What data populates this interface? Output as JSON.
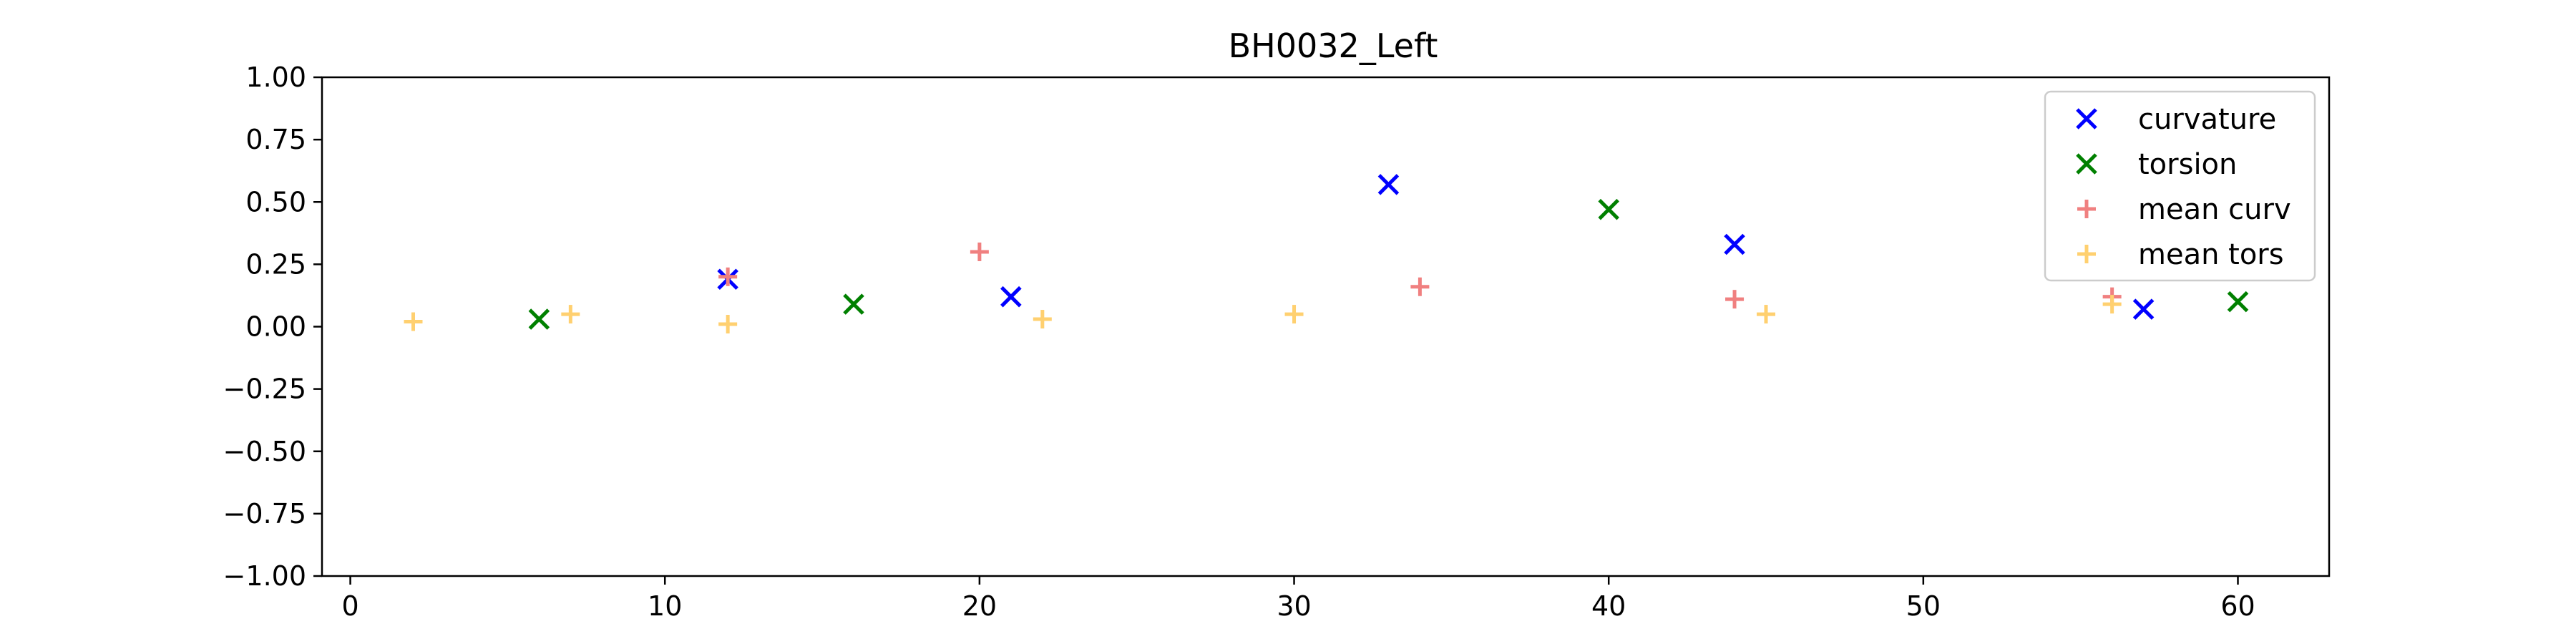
{
  "chart_data": {
    "type": "scatter",
    "title": "BH0032_Left",
    "xlabel": "",
    "ylabel": "",
    "xlim": [
      -0.9,
      62.9
    ],
    "ylim": [
      -1.0,
      1.0
    ],
    "xticks": [
      0,
      10,
      20,
      30,
      40,
      50,
      60
    ],
    "yticks": [
      1.0,
      0.75,
      0.5,
      0.25,
      0.0,
      -0.25,
      -0.5,
      -0.75,
      -1.0
    ],
    "ytick_labels": [
      "1.00",
      "0.75",
      "0.50",
      "0.25",
      "0.00",
      "−0.25",
      "−0.50",
      "−0.75",
      "−1.00"
    ],
    "xtick_labels": [
      "0",
      "10",
      "20",
      "30",
      "40",
      "50",
      "60"
    ],
    "grid": false,
    "legend_position": "upper right",
    "series": [
      {
        "name": "curvature",
        "marker": "x",
        "color": "#0000ff",
        "points": [
          [
            12,
            0.19
          ],
          [
            21,
            0.12
          ],
          [
            33,
            0.57
          ],
          [
            44,
            0.33
          ],
          [
            57,
            0.07
          ]
        ]
      },
      {
        "name": "torsion",
        "marker": "x",
        "color": "#008000",
        "points": [
          [
            6,
            0.03
          ],
          [
            16,
            0.09
          ],
          [
            40,
            0.47
          ],
          [
            60,
            0.1
          ]
        ]
      },
      {
        "name": "mean curv",
        "marker": "+",
        "color": "#f08080",
        "points": [
          [
            12,
            0.2
          ],
          [
            20,
            0.3
          ],
          [
            34,
            0.16
          ],
          [
            44,
            0.11
          ],
          [
            56,
            0.12
          ]
        ]
      },
      {
        "name": "mean tors",
        "marker": "+",
        "color": "#ffd070",
        "points": [
          [
            2,
            0.02
          ],
          [
            7,
            0.05
          ],
          [
            12,
            0.01
          ],
          [
            22,
            0.03
          ],
          [
            30,
            0.05
          ],
          [
            45,
            0.05
          ],
          [
            56,
            0.09
          ]
        ]
      }
    ]
  }
}
